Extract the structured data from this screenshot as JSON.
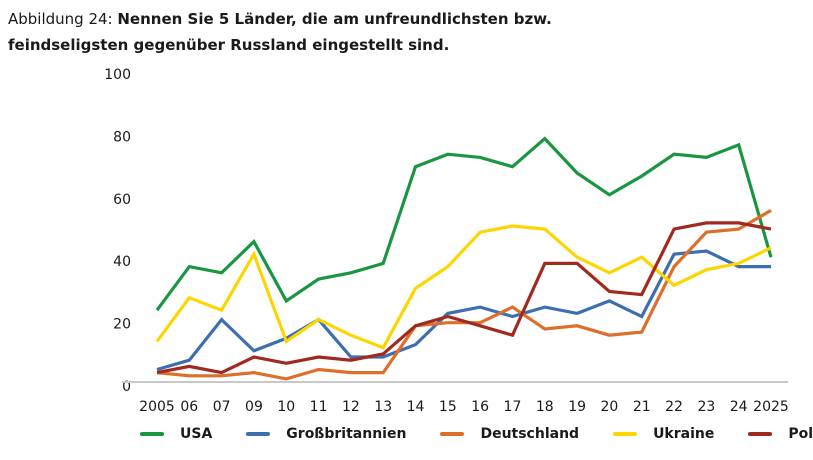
{
  "title": {
    "prefix": "Abbildung 24: ",
    "line1_bold": "Nennen Sie 5 Länder, die am unfreundlichsten bzw.",
    "line2_bold": "feindseligsten gegenüber Russland eingestellt sind."
  },
  "chart_data": {
    "type": "line",
    "title": "Abbildung 24: Nennen Sie 5 Länder, die am unfreundlichsten bzw. feindseligsten gegenüber Russland eingestellt sind.",
    "xlabel": "",
    "ylabel": "",
    "ylim": [
      0,
      100
    ],
    "yticks": [
      "0",
      "20",
      "40",
      "60",
      "80",
      "100"
    ],
    "grid": false,
    "legend_position": "bottom",
    "categories": [
      "2005",
      "06",
      "07",
      "09",
      "10",
      "11",
      "12",
      "13",
      "14",
      "15",
      "16",
      "17",
      "18",
      "19",
      "20",
      "21",
      "22",
      "23",
      "24",
      "2025"
    ],
    "series": [
      {
        "name": "USA",
        "color": "#1a9641",
        "values": [
          23,
          37,
          35,
          45,
          26,
          33,
          35,
          38,
          69,
          73,
          72,
          69,
          78,
          67,
          60,
          66,
          73,
          72,
          76,
          40
        ]
      },
      {
        "name": "Großbritannien",
        "color": "#3d6fb0",
        "values": [
          4,
          7,
          20,
          10,
          14,
          20,
          8,
          8,
          12,
          22,
          24,
          21,
          24,
          22,
          26,
          21,
          41,
          42,
          37,
          37
        ]
      },
      {
        "name": "Deutschland",
        "color": "#de6f2b",
        "values": [
          3,
          2,
          2,
          3,
          1,
          4,
          3,
          3,
          18,
          19,
          19,
          24,
          17,
          18,
          15,
          16,
          37,
          48,
          49,
          55
        ]
      },
      {
        "name": "Ukraine",
        "color": "#ffd500",
        "values": [
          13,
          27,
          23,
          41,
          13,
          20,
          15,
          11,
          30,
          37,
          48,
          50,
          49,
          40,
          35,
          40,
          31,
          36,
          38,
          43
        ]
      },
      {
        "name": "Polen",
        "color": "#a12a20",
        "values": [
          3,
          5,
          3,
          8,
          6,
          8,
          7,
          9,
          18,
          21,
          18,
          15,
          38,
          38,
          29,
          28,
          49,
          51,
          51,
          49
        ]
      }
    ]
  }
}
